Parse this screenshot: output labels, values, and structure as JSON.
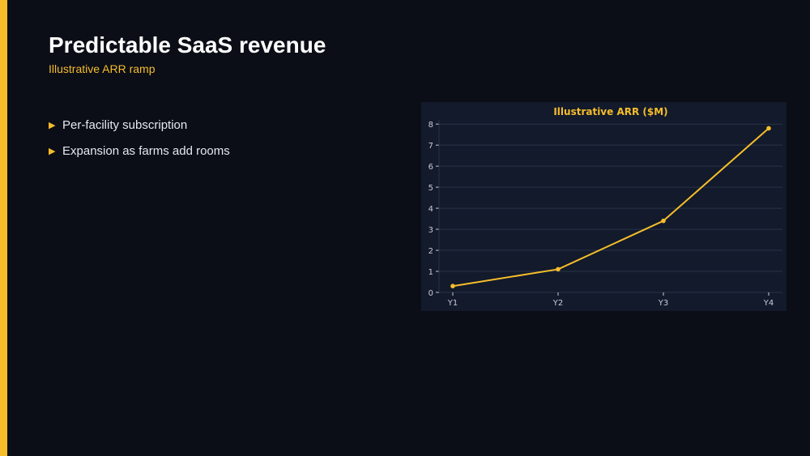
{
  "slide": {
    "title": "Predictable SaaS revenue",
    "subtitle": "Illustrative ARR ramp",
    "accent_color": "#f6bd2a",
    "background_color": "#0b0e17"
  },
  "bullets": [
    {
      "text": "Per-facility subscription",
      "icon": "triangle-right-icon"
    },
    {
      "text": "Expansion as farms add rooms",
      "icon": "triangle-right-icon"
    }
  ],
  "chart_data": {
    "type": "line",
    "title": "Illustrative ARR ($M)",
    "xlabel": "",
    "ylabel": "",
    "categories": [
      "Y1",
      "Y2",
      "Y3",
      "Y4"
    ],
    "series": [
      {
        "values": [
          0.3,
          1.1,
          3.4,
          7.8
        ],
        "color": "#f6bd2a"
      }
    ],
    "ylim": [
      0,
      8.2
    ],
    "yticks": [
      0,
      1,
      2,
      3,
      4,
      5,
      6,
      7,
      8
    ],
    "grid": true,
    "legend": "none",
    "panel_color": "#121a2b",
    "grid_color": "#2a3447",
    "tick_color": "#c8ccd6"
  }
}
